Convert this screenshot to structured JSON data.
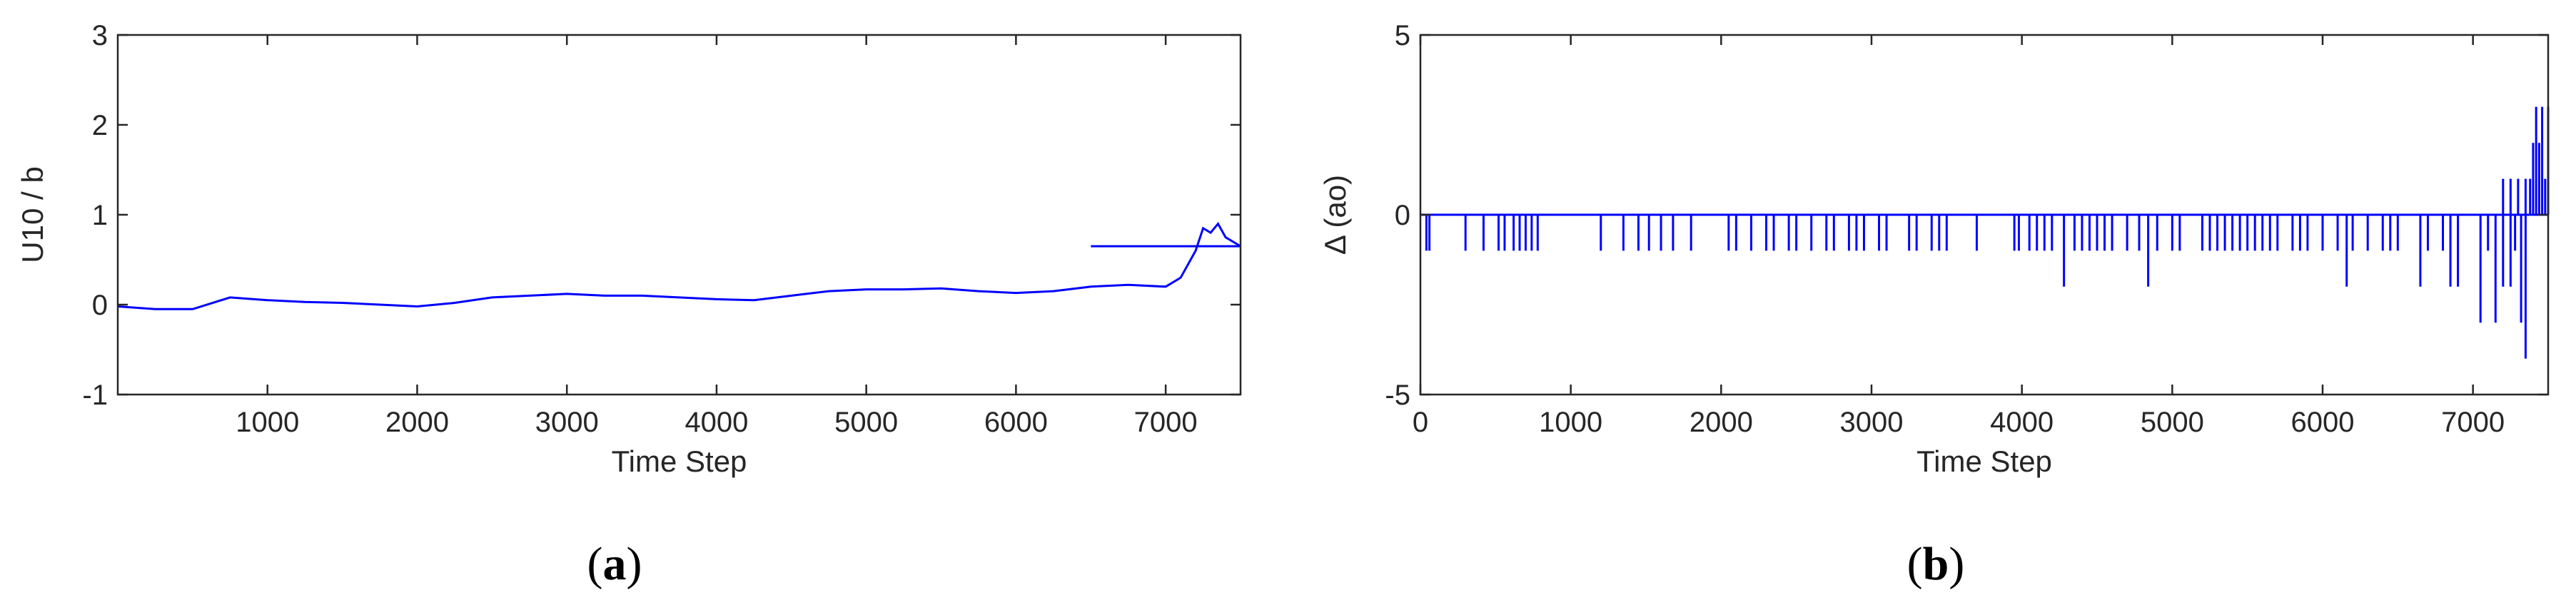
{
  "chart_data": [
    {
      "panel": "a",
      "type": "line",
      "xlabel": "Time Step",
      "ylabel": "U10 / b",
      "xlim": [
        0,
        7500
      ],
      "ylim": [
        -1,
        3
      ],
      "xticks": [
        1000,
        2000,
        3000,
        4000,
        5000,
        6000,
        7000
      ],
      "yticks": [
        -1,
        0,
        1,
        2,
        3
      ],
      "grid": false,
      "color": "#0000ff",
      "series": [
        {
          "x": [
            0,
            250,
            500,
            750,
            1000,
            1250,
            1500,
            1750,
            2000,
            2250,
            2500,
            2750,
            3000,
            3250,
            3500,
            3750,
            4000,
            4250,
            4500,
            4750,
            5000,
            5250,
            5500,
            5750,
            6000,
            6250,
            6500,
            6750,
            7000,
            7100,
            7200,
            7250,
            7300,
            7350,
            7400,
            7450,
            7500
          ],
          "y": [
            -0.02,
            -0.05,
            -0.05,
            0.08,
            0.05,
            0.03,
            0.02,
            0.0,
            -0.02,
            0.02,
            0.08,
            0.1,
            0.12,
            0.1,
            0.1,
            0.08,
            0.06,
            0.05,
            0.1,
            0.15,
            0.17,
            0.17,
            0.18,
            0.15,
            0.13,
            0.15,
            0.2,
            0.22,
            0.2,
            0.3,
            0.6,
            0.85,
            0.8,
            0.9,
            0.75,
            0.7,
            0.65
          ]
        },
        {
          "x": [
            6500,
            7500
          ],
          "y": [
            0.65,
            0.65
          ]
        }
      ]
    },
    {
      "panel": "b",
      "type": "line",
      "xlabel": "Time Step",
      "ylabel": "Δ (ao)",
      "xlim": [
        0,
        7500
      ],
      "ylim": [
        -5,
        5
      ],
      "xticks": [
        0,
        1000,
        2000,
        3000,
        4000,
        5000,
        6000,
        7000
      ],
      "yticks": [
        -5,
        0,
        5
      ],
      "grid": false,
      "color": "#0000ff",
      "baseline": 0,
      "spikes": {
        "x": [
          40,
          60,
          300,
          420,
          520,
          560,
          620,
          660,
          700,
          740,
          780,
          1200,
          1350,
          1450,
          1520,
          1600,
          1680,
          1800,
          2050,
          2100,
          2200,
          2300,
          2350,
          2450,
          2500,
          2600,
          2700,
          2750,
          2850,
          2900,
          2950,
          3050,
          3100,
          3250,
          3300,
          3400,
          3450,
          3500,
          3700,
          3950,
          3980,
          4050,
          4100,
          4150,
          4200,
          4280,
          4350,
          4400,
          4450,
          4500,
          4550,
          4600,
          4700,
          4780,
          4840,
          4900,
          5000,
          5050,
          5200,
          5250,
          5300,
          5350,
          5400,
          5450,
          5500,
          5550,
          5600,
          5650,
          5700,
          5800,
          5850,
          5900,
          6000,
          6100,
          6160,
          6200,
          6300,
          6400,
          6450,
          6500,
          6650,
          6700,
          6800,
          6850,
          6900,
          7050,
          7100,
          7150,
          7200,
          7250,
          7280,
          7320,
          7350
        ],
        "y": [
          -1,
          -1,
          -1,
          -1,
          -1,
          -1,
          -1,
          -1,
          -1,
          -1,
          -1,
          -1,
          -1,
          -1,
          -1,
          -1,
          -1,
          -1,
          -1,
          -1,
          -1,
          -1,
          -1,
          -1,
          -1,
          -1,
          -1,
          -1,
          -1,
          -1,
          -1,
          -1,
          -1,
          -1,
          -1,
          -1,
          -1,
          -1,
          -1,
          -1,
          -1,
          -1,
          -1,
          -1,
          -1,
          -2,
          -1,
          -1,
          -1,
          -1,
          -1,
          -1,
          -1,
          -1,
          -2,
          -1,
          -1,
          -1,
          -1,
          -1,
          -1,
          -1,
          -1,
          -1,
          -1,
          -1,
          -1,
          -1,
          -1,
          -1,
          -1,
          -1,
          -1,
          -1,
          -2,
          -1,
          -1,
          -1,
          -1,
          -1,
          -2,
          -1,
          -1,
          -2,
          -2,
          -3,
          -1,
          -3,
          -2,
          -2,
          -1,
          -3,
          -4
        ]
      },
      "positive": {
        "x": [
          7200,
          7250,
          7300,
          7350,
          7380,
          7400,
          7420,
          7440,
          7460,
          7480,
          7500
        ],
        "y": [
          1,
          1,
          1,
          1,
          1,
          2,
          3,
          2,
          3,
          1,
          3
        ]
      }
    }
  ],
  "panel_labels": {
    "a": "a",
    "b": "b",
    "open": "(",
    "close": ")"
  }
}
